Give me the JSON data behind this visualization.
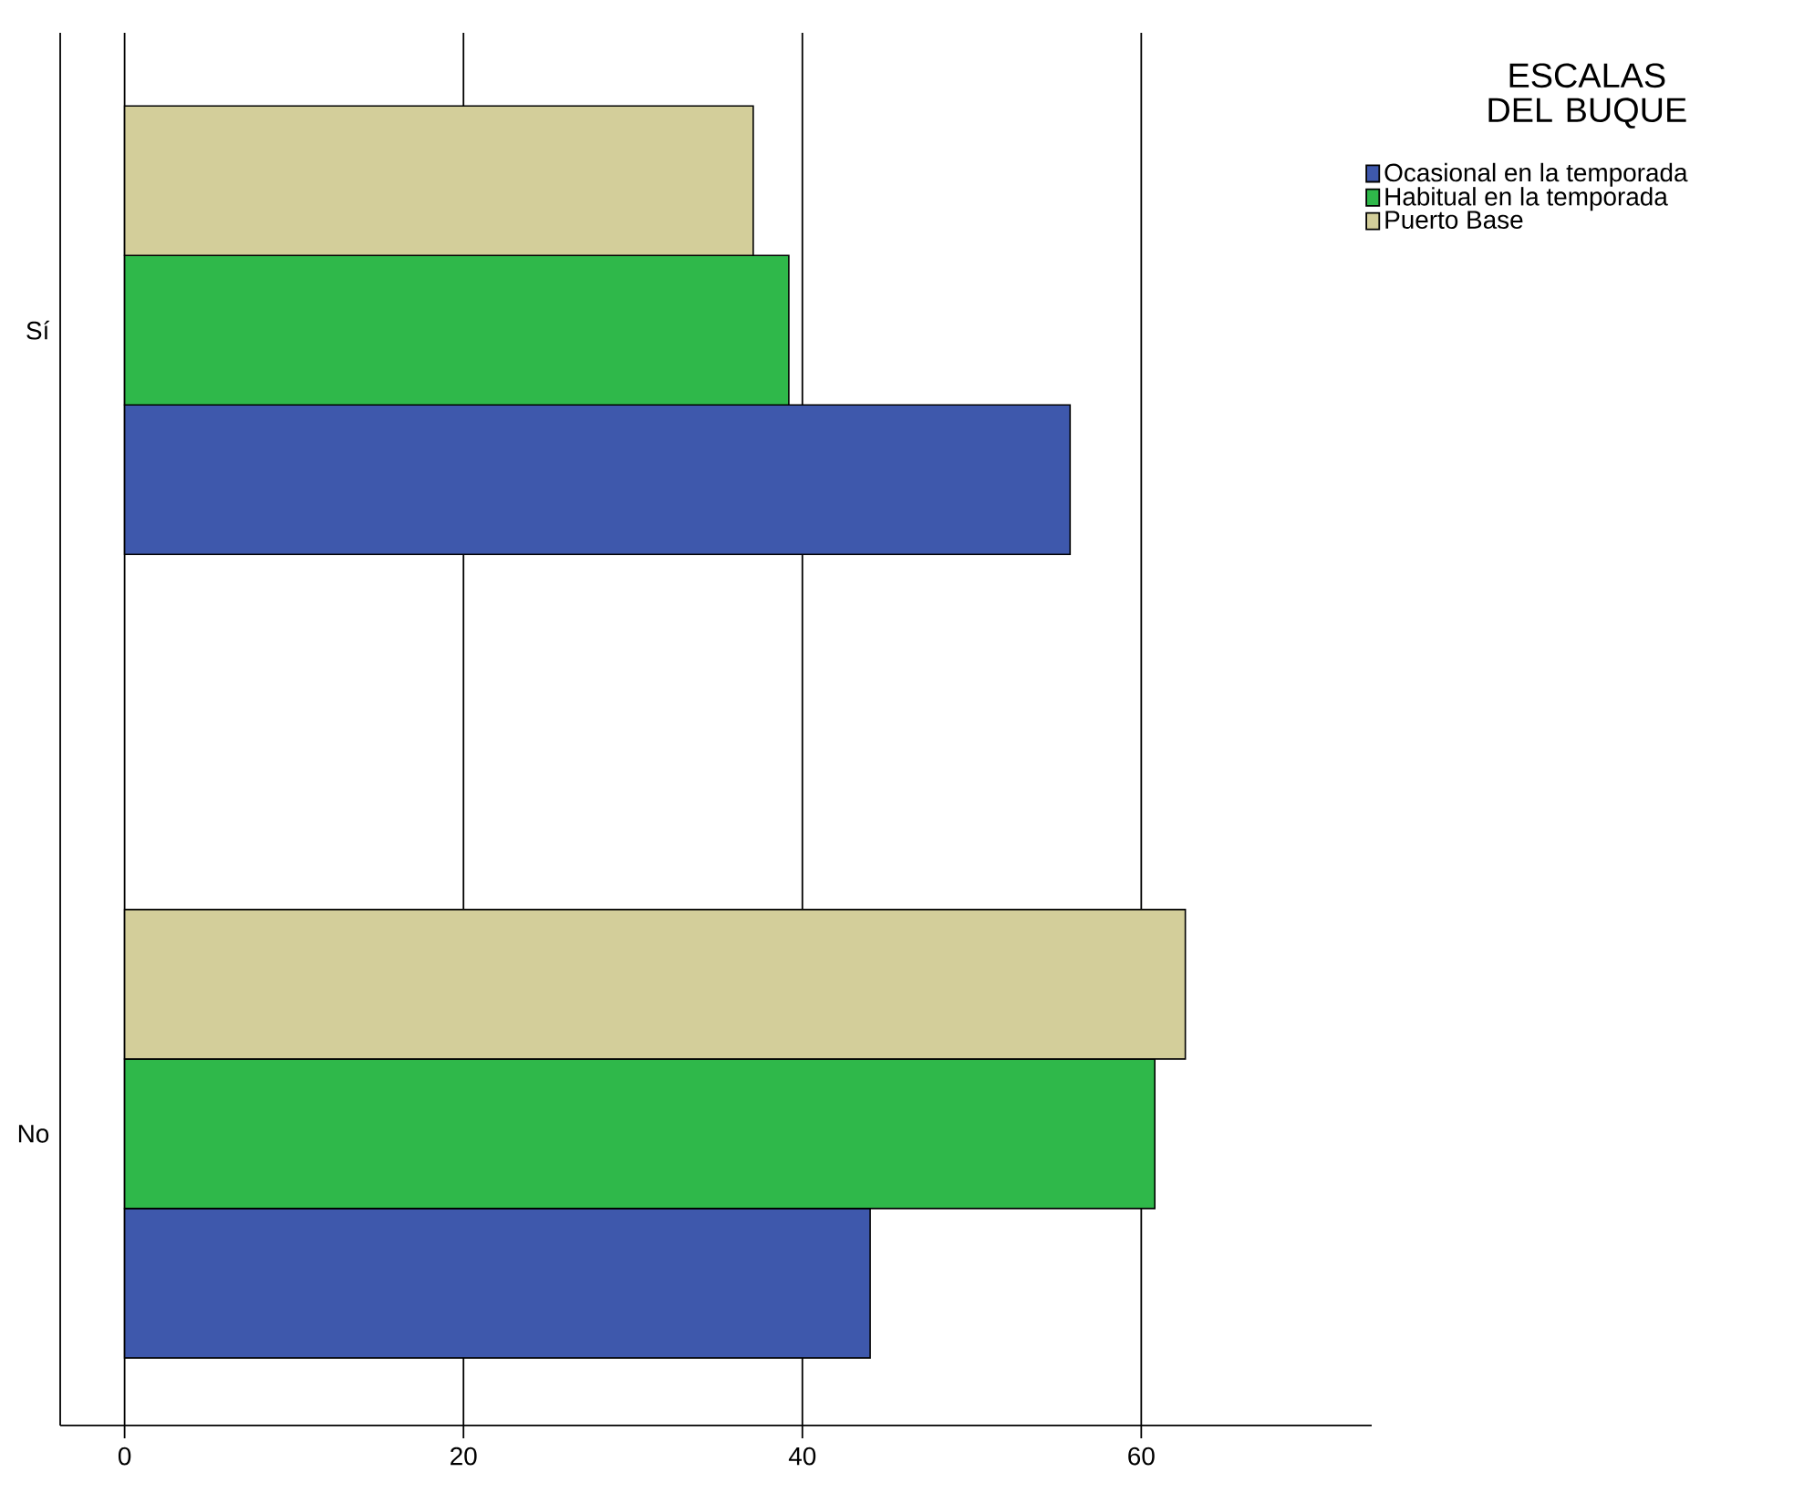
{
  "chart_data": {
    "type": "bar",
    "orientation": "horizontal",
    "legend_title": "ESCALAS DEL BUQUE",
    "categories": [
      "Sí",
      "No"
    ],
    "series": [
      {
        "name": "Ocasional en la temporada",
        "color": "#3e58ac",
        "values": [
          55.8,
          44.0
        ]
      },
      {
        "name": "Habitual en la temporada",
        "color": "#2fb84a",
        "values": [
          39.2,
          60.8
        ]
      },
      {
        "name": "Puerto Base",
        "color": "#d3ce9a",
        "values": [
          37.1,
          62.6
        ]
      }
    ],
    "xlim": [
      -3.8,
      73.6
    ],
    "xticks": [
      0,
      20,
      40,
      60
    ],
    "grid": "x",
    "legend": "top right"
  }
}
